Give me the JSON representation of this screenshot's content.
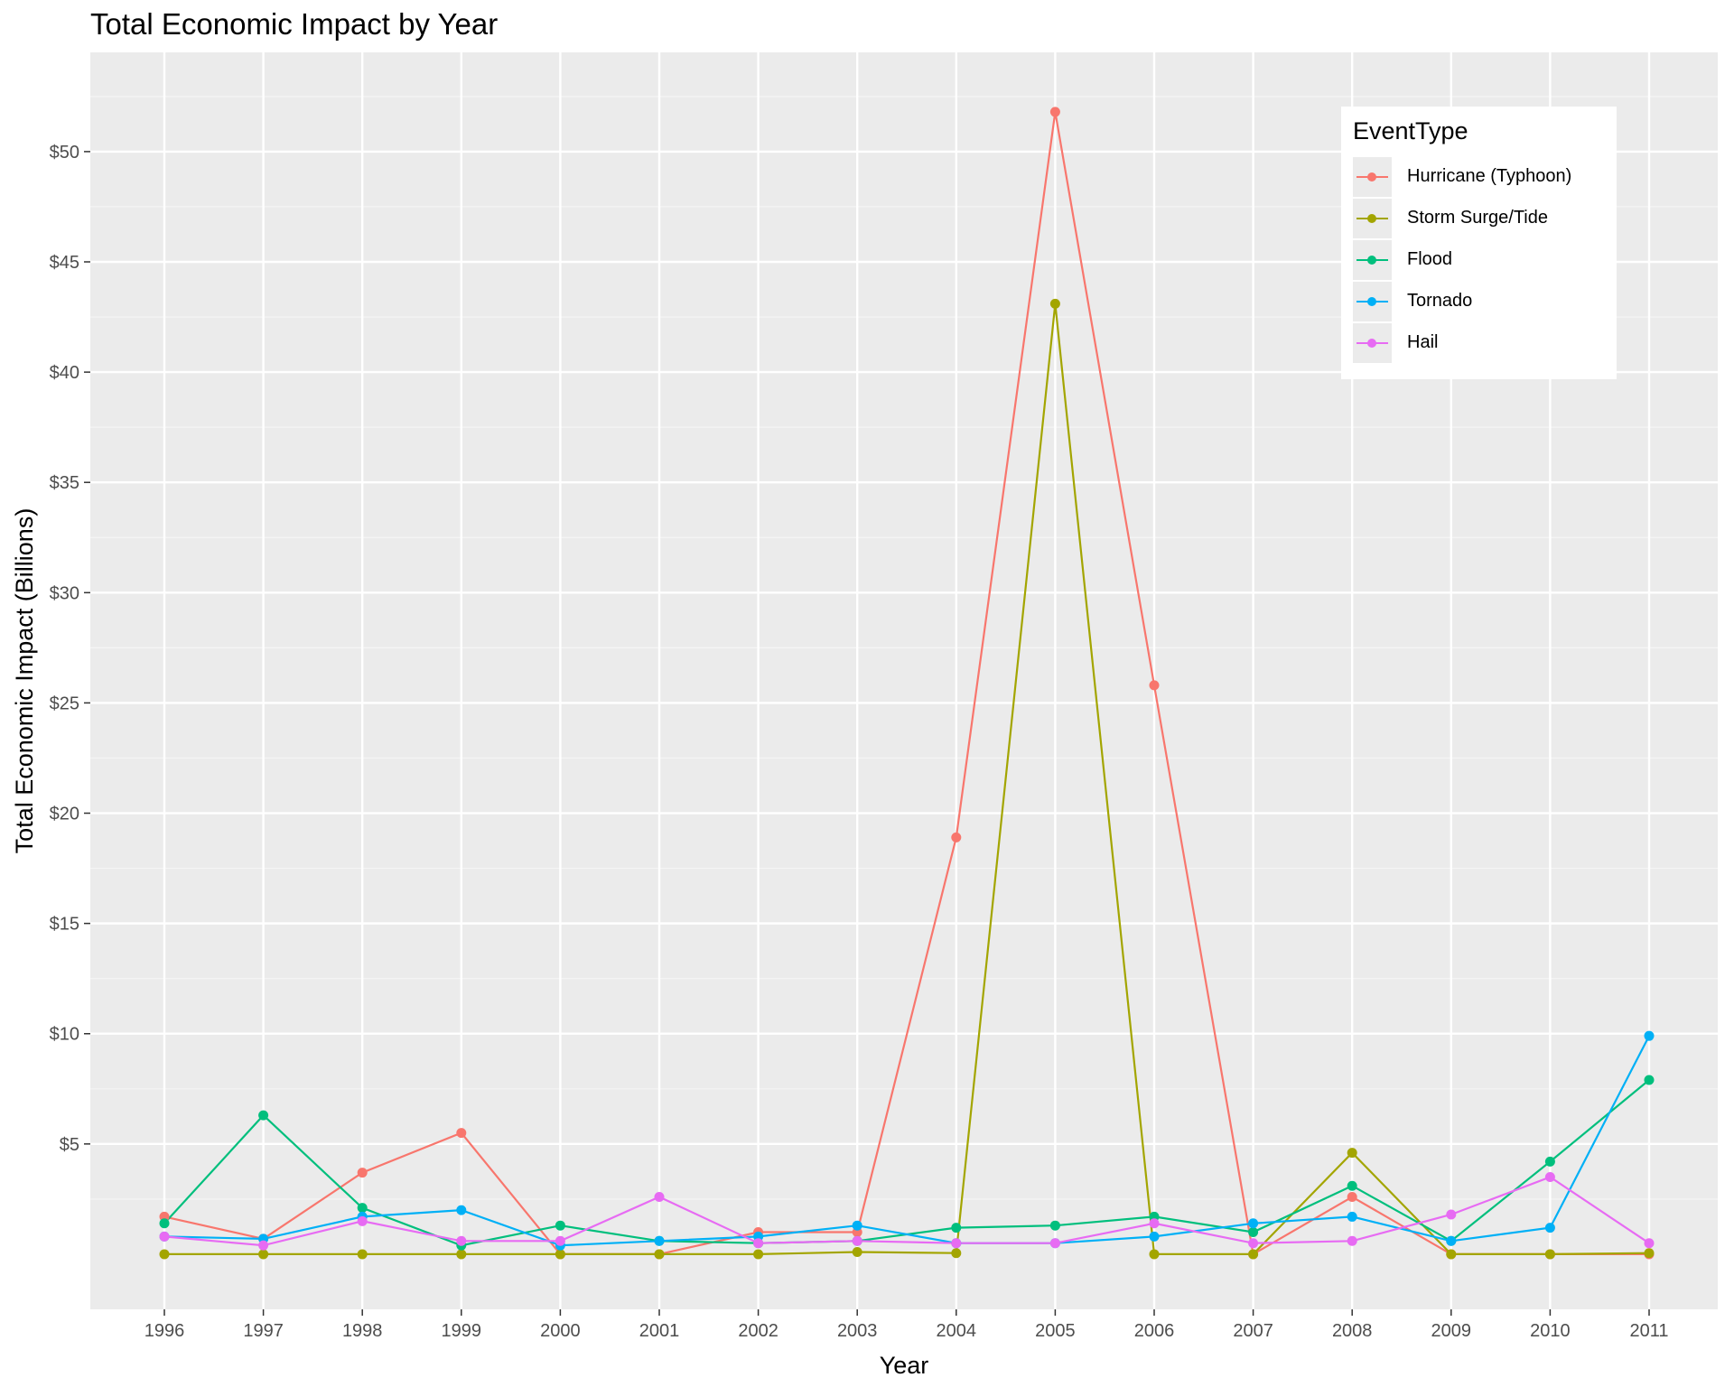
{
  "chart_data": {
    "type": "line",
    "title": "Total Economic Impact by Year",
    "xlabel": "Year",
    "ylabel": "Total Economic Impact (Billions)",
    "x": [
      "1996",
      "1997",
      "1998",
      "1999",
      "2000",
      "2001",
      "2002",
      "2003",
      "2004",
      "2005",
      "2006",
      "2007",
      "2008",
      "2009",
      "2010",
      "2011"
    ],
    "ylim": [
      -2.5,
      54.5
    ],
    "yticks": [
      5,
      10,
      15,
      20,
      25,
      30,
      35,
      40,
      45,
      50
    ],
    "ytick_labels": [
      "$5",
      "$10",
      "$15",
      "$20",
      "$25",
      "$30",
      "$35",
      "$40",
      "$45",
      "$50"
    ],
    "grid": true,
    "legend": {
      "title": "EventType",
      "position": "top-right"
    },
    "series": [
      {
        "name": "Hurricane (Typhoon)",
        "color": "#F8766D",
        "values": [
          1.7,
          0.7,
          3.7,
          5.5,
          0.0,
          0.0,
          1.0,
          1.0,
          18.9,
          51.8,
          25.8,
          0.0,
          2.6,
          0.0,
          0.0,
          0.0
        ]
      },
      {
        "name": "Storm Surge/Tide",
        "color": "#A3A500",
        "values": [
          0.0,
          0.0,
          0.0,
          0.0,
          0.0,
          0.0,
          0.0,
          0.1,
          0.05,
          43.1,
          0.0,
          0.0,
          4.6,
          0.0,
          0.0,
          0.05
        ]
      },
      {
        "name": "Flood",
        "color": "#00BF7D",
        "values": [
          1.4,
          6.3,
          2.1,
          0.4,
          1.3,
          0.6,
          0.5,
          0.6,
          1.2,
          1.3,
          1.7,
          1.0,
          3.1,
          0.6,
          4.2,
          7.9
        ]
      },
      {
        "name": "Tornado",
        "color": "#00B0F6",
        "values": [
          0.8,
          0.7,
          1.7,
          2.0,
          0.4,
          0.6,
          0.8,
          1.3,
          0.5,
          0.5,
          0.8,
          1.4,
          1.7,
          0.6,
          1.2,
          9.9
        ]
      },
      {
        "name": "Hail",
        "color": "#E76BF3",
        "values": [
          0.8,
          0.4,
          1.5,
          0.6,
          0.6,
          2.6,
          0.5,
          0.6,
          0.5,
          0.5,
          1.4,
          0.5,
          0.6,
          1.8,
          3.5,
          0.5
        ]
      }
    ]
  }
}
